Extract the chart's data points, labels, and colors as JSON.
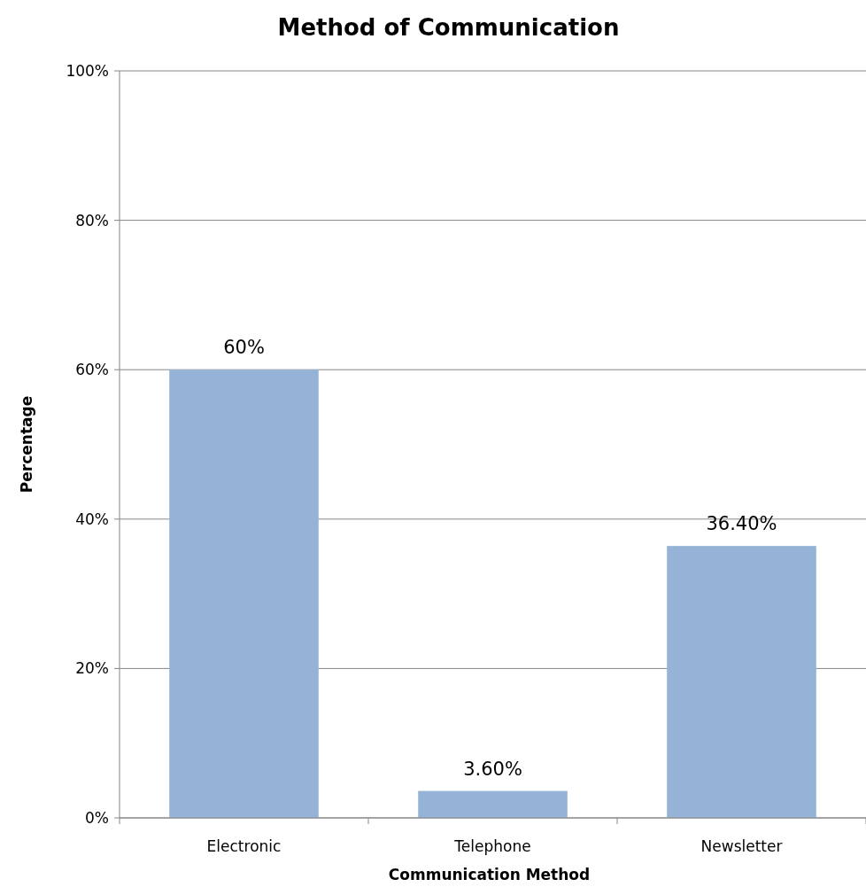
{
  "chart_data": {
    "type": "bar",
    "title": "Method of Communication",
    "xlabel": "Communication Method",
    "ylabel": "Percentage",
    "categories": [
      "Electronic",
      "Telephone",
      "Newsletter"
    ],
    "values": [
      60,
      3.6,
      36.4
    ],
    "value_labels": [
      "60%",
      "3.60%",
      "36.40%"
    ],
    "color": "#95b3d7",
    "ylim": [
      0,
      100
    ],
    "yticks": [
      {
        "value": 0,
        "label": "0%"
      },
      {
        "value": 20,
        "label": "20%"
      },
      {
        "value": 40,
        "label": "40%"
      },
      {
        "value": 60,
        "label": "60%"
      },
      {
        "value": 80,
        "label": "80%"
      },
      {
        "value": 100,
        "label": "100%"
      }
    ],
    "grid": "y"
  }
}
